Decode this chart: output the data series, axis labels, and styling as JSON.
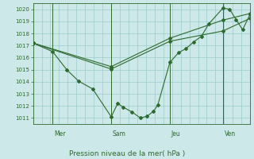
{
  "bg_color": "#cce8e8",
  "grid_color": "#99cccc",
  "line_color": "#2d6a2d",
  "xlabel": "Pression niveau de la mer( hPa )",
  "ylim": [
    1010.5,
    1020.5
  ],
  "yticks": [
    1011,
    1012,
    1013,
    1014,
    1015,
    1016,
    1017,
    1018,
    1019,
    1020
  ],
  "day_labels": [
    "Mer",
    "Sam",
    "Jeu",
    "Ven"
  ],
  "day_positions": [
    0.09,
    0.36,
    0.63,
    0.875
  ],
  "series1_x": [
    0.0,
    0.09,
    0.155,
    0.21,
    0.275,
    0.36,
    0.39,
    0.415,
    0.455,
    0.495,
    0.525,
    0.555,
    0.575,
    0.63,
    0.67,
    0.705,
    0.74,
    0.775,
    0.81,
    0.875,
    0.905,
    0.935,
    0.965,
    1.0
  ],
  "series1_y": [
    1017.2,
    1016.5,
    1015.0,
    1014.05,
    1013.4,
    1011.1,
    1012.2,
    1011.9,
    1011.5,
    1011.0,
    1011.15,
    1011.55,
    1012.1,
    1015.6,
    1016.4,
    1016.75,
    1017.3,
    1017.75,
    1018.8,
    1020.1,
    1020.0,
    1019.15,
    1018.3,
    1019.6
  ],
  "series2_x": [
    0.0,
    0.36,
    0.63,
    0.875,
    1.0
  ],
  "series2_y": [
    1017.2,
    1015.25,
    1017.6,
    1019.1,
    1019.65
  ],
  "series3_x": [
    0.0,
    0.36,
    0.63,
    0.875,
    1.0
  ],
  "series3_y": [
    1017.2,
    1015.05,
    1017.35,
    1018.2,
    1019.25
  ]
}
